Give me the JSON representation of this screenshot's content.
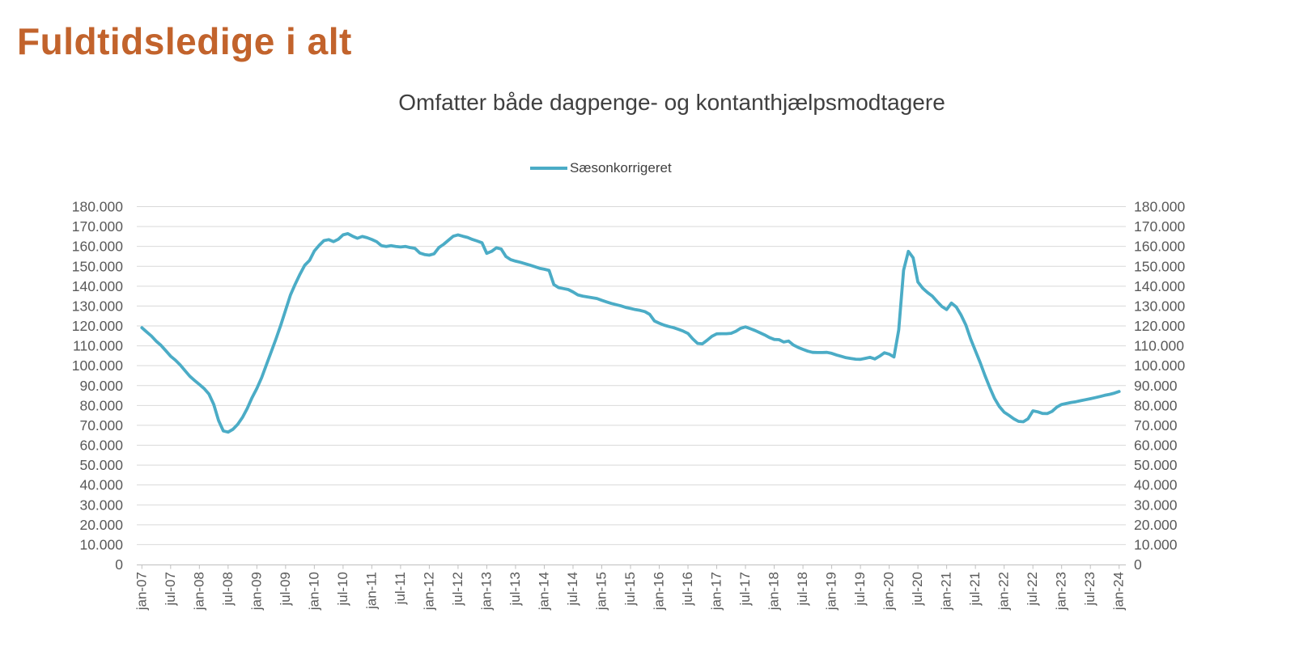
{
  "title": "Fuldtidsledige i alt",
  "subtitle": "Omfatter både dagpenge- og kontanthjælpsmodtagere",
  "legend": {
    "label": "Sæsonkorrigeret"
  },
  "colors": {
    "line": "#4BACC6",
    "title": "#C2632C",
    "subtitle": "#3F3F3F",
    "axis_text": "#595959",
    "gridline": "#D9D9D9",
    "axis_line": "#BFBFBF",
    "background": "#FFFFFF"
  },
  "chart_data": {
    "type": "line",
    "title": "Omfatter både dagpenge- og kontanthjælpsmodtagere",
    "xlabel": "",
    "ylabel": "",
    "grid": "horizontal",
    "legend_position": "top-center",
    "legend_entries": [
      "Sæsonkorrigeret"
    ],
    "y_axis_sides": "both",
    "ylim": [
      0,
      180000
    ],
    "x_unit": "month",
    "x_start": "jan-07",
    "x_end": "jan-24",
    "x_tick_labels": [
      "jan-07",
      "jul-07",
      "jan-08",
      "jul-08",
      "jan-09",
      "jul-09",
      "jan-10",
      "jul-10",
      "jan-11",
      "jul-11",
      "jan-12",
      "jul-12",
      "jan-13",
      "jul-13",
      "jan-14",
      "jul-14",
      "jan-15",
      "jul-15",
      "jan-16",
      "jul-16",
      "jan-17",
      "jul-17",
      "jan-18",
      "jul-18",
      "jan-19",
      "jul-19",
      "jan-20",
      "jul-20",
      "jan-21",
      "jul-21",
      "jan-22",
      "jul-22",
      "jan-23",
      "jul-23",
      "jan-24"
    ],
    "x_ticks_every_n_months": 6,
    "y_tick_values": [
      0,
      10000,
      20000,
      30000,
      40000,
      50000,
      60000,
      70000,
      80000,
      90000,
      100000,
      110000,
      120000,
      130000,
      140000,
      150000,
      160000,
      170000,
      180000
    ],
    "y_tick_labels": [
      "0",
      "10.000",
      "20.000",
      "30.000",
      "40.000",
      "50.000",
      "60.000",
      "70.000",
      "80.000",
      "90.000",
      "100.000",
      "110.000",
      "120.000",
      "130.000",
      "140.000",
      "150.000",
      "160.000",
      "170.000",
      "180.000"
    ],
    "series": [
      {
        "name": "Sæsonkorrigeret",
        "color": "#4BACC6",
        "monthly_start": "2007-01",
        "values": [
          119100,
          117000,
          114900,
          112300,
          110200,
          107500,
          104800,
          102800,
          100400,
          97500,
          94700,
          92600,
          90600,
          88500,
          85700,
          80500,
          72500,
          67200,
          66600,
          68000,
          70500,
          74000,
          78500,
          83900,
          88500,
          94000,
          100500,
          107000,
          113500,
          120400,
          128000,
          135500,
          141000,
          146000,
          150500,
          153000,
          157700,
          160500,
          162900,
          163400,
          162400,
          163600,
          165800,
          166400,
          165100,
          164100,
          165000,
          164400,
          163500,
          162400,
          160400,
          160000,
          160400,
          160000,
          159700,
          160000,
          159400,
          159000,
          156700,
          155900,
          155600,
          156300,
          159400,
          161100,
          163100,
          165100,
          165800,
          165100,
          164500,
          163500,
          162700,
          161800,
          156500,
          157500,
          159300,
          158700,
          154900,
          153300,
          152600,
          152000,
          151300,
          150600,
          149800,
          149000,
          148500,
          147900,
          140800,
          139300,
          138800,
          138300,
          137100,
          135600,
          135000,
          134600,
          134200,
          133800,
          132900,
          132100,
          131300,
          130700,
          130100,
          129300,
          128800,
          128200,
          127800,
          127200,
          125800,
          122500,
          121400,
          120400,
          119700,
          119100,
          118300,
          117400,
          116200,
          113500,
          111200,
          111000,
          112800,
          114800,
          116000,
          116100,
          116100,
          116300,
          117300,
          118800,
          119500,
          118600,
          117700,
          116600,
          115500,
          114200,
          113200,
          113100,
          111900,
          112400,
          110400,
          109200,
          108200,
          107300,
          106700,
          106600,
          106600,
          106700,
          106200,
          105400,
          104700,
          104000,
          103600,
          103300,
          103200,
          103700,
          104200,
          103400,
          104800,
          106500,
          105800,
          104400,
          118000,
          148000,
          157500,
          154300,
          142100,
          139000,
          136800,
          135000,
          132300,
          129800,
          128200,
          131500,
          129500,
          125500,
          120500,
          113500,
          107500,
          101500,
          95000,
          89000,
          83500,
          79500,
          76600,
          75000,
          73300,
          72000,
          71800,
          73300,
          77300,
          76800,
          76000,
          75900,
          77000,
          79200,
          80500,
          81000,
          81500,
          81900,
          82400,
          82900,
          83400,
          83900,
          84500,
          85100,
          85600,
          86200,
          87000
        ]
      }
    ]
  }
}
